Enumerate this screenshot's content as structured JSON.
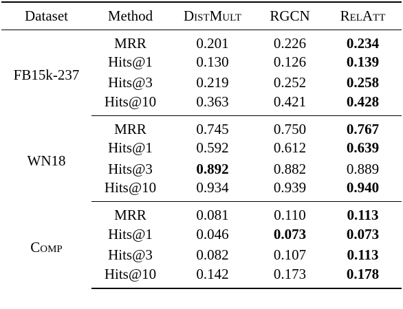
{
  "header": {
    "dataset": "Dataset",
    "method": "Method",
    "distmult": "DistMult",
    "rgcn": "RGCN",
    "relatt": "RelAtt"
  },
  "groups": [
    {
      "dataset": "FB15k-237",
      "rows": [
        {
          "metric": "MRR",
          "distmult": "0.201",
          "rgcn": "0.226",
          "relatt": "0.234"
        },
        {
          "metric": "Hits@1",
          "distmult": "0.130",
          "rgcn": "0.126",
          "relatt": "0.139"
        },
        {
          "metric": "Hits@3",
          "distmult": "0.219",
          "rgcn": "0.252",
          "relatt": "0.258"
        },
        {
          "metric": "Hits@10",
          "distmult": "0.363",
          "rgcn": "0.421",
          "relatt": "0.428"
        }
      ]
    },
    {
      "dataset": "WN18",
      "rows": [
        {
          "metric": "MRR",
          "distmult": "0.745",
          "rgcn": "0.750",
          "relatt": "0.767"
        },
        {
          "metric": "Hits@1",
          "distmult": "0.592",
          "rgcn": "0.612",
          "relatt": "0.639"
        },
        {
          "metric": "Hits@3",
          "distmult": "0.892",
          "rgcn": "0.882",
          "relatt": "0.889"
        },
        {
          "metric": "Hits@10",
          "distmult": "0.934",
          "rgcn": "0.939",
          "relatt": "0.940"
        }
      ]
    },
    {
      "dataset": "Comp",
      "rows": [
        {
          "metric": "MRR",
          "distmult": "0.081",
          "rgcn": "0.110",
          "relatt": "0.113"
        },
        {
          "metric": "Hits@1",
          "distmult": "0.046",
          "rgcn": "0.073",
          "relatt": "0.073"
        },
        {
          "metric": "Hits@3",
          "distmult": "0.082",
          "rgcn": "0.107",
          "relatt": "0.113"
        },
        {
          "metric": "Hits@10",
          "distmult": "0.142",
          "rgcn": "0.173",
          "relatt": "0.178"
        }
      ]
    }
  ]
}
